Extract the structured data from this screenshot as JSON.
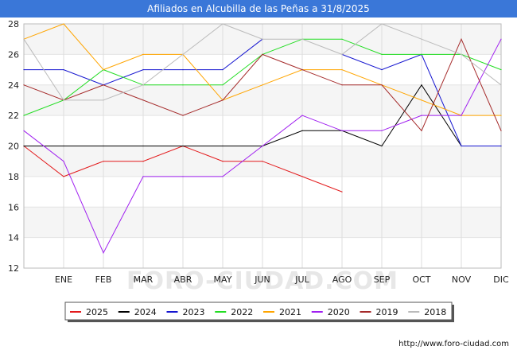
{
  "header": {
    "title": "Afiliados en Alcubilla de las Peñas a 31/8/2025"
  },
  "footer": {
    "source": "http://www.foro-ciudad.com"
  },
  "watermark": "FORO-CIUDAD.COM",
  "chart_data": {
    "type": "line",
    "title": "Afiliados en Alcubilla de las Peñas a 31/8/2025",
    "xlabel": "",
    "ylabel": "",
    "x_tick_labels": [
      "ENE",
      "FEB",
      "MAR",
      "ABR",
      "MAY",
      "JUN",
      "JUL",
      "AGO",
      "SEP",
      "OCT",
      "NOV",
      "DIC"
    ],
    "ylim": [
      12,
      28
    ],
    "yticks": [
      12,
      14,
      16,
      18,
      20,
      22,
      24,
      26,
      28
    ],
    "grid": true,
    "legend_position": "bottom",
    "series": [
      {
        "name": "2025",
        "color": "#e31a1c",
        "values": [
          20,
          18,
          19,
          19,
          20,
          19,
          19,
          18,
          17
        ]
      },
      {
        "name": "2024",
        "color": "#000000",
        "values": [
          20,
          20,
          20,
          20,
          20,
          20,
          20,
          21,
          21,
          20,
          24,
          20,
          20
        ]
      },
      {
        "name": "2023",
        "color": "#1515d0",
        "values": [
          25,
          25,
          24,
          25,
          25,
          25,
          27,
          null,
          26,
          25,
          26,
          20,
          20
        ]
      },
      {
        "name": "2022",
        "color": "#22dd22",
        "values": [
          22,
          23,
          25,
          24,
          24,
          24,
          26,
          27,
          27,
          26,
          26,
          26,
          25
        ]
      },
      {
        "name": "2021",
        "color": "#ffa500",
        "values": [
          27,
          28,
          25,
          26,
          26,
          23,
          24,
          25,
          25,
          24,
          23,
          22,
          22
        ]
      },
      {
        "name": "2020",
        "color": "#a020f0",
        "values": [
          21,
          19,
          13,
          18,
          18,
          18,
          20,
          22,
          21,
          21,
          22,
          22,
          27
        ]
      },
      {
        "name": "2019",
        "color": "#a52a2a",
        "values": [
          24,
          23,
          24,
          23,
          22,
          23,
          26,
          25,
          24,
          24,
          21,
          27,
          21
        ]
      },
      {
        "name": "2018",
        "color": "#bbbbbb",
        "values": [
          27,
          23,
          23,
          24,
          26,
          28,
          27,
          27,
          26,
          28,
          27,
          26,
          24
        ]
      }
    ]
  }
}
